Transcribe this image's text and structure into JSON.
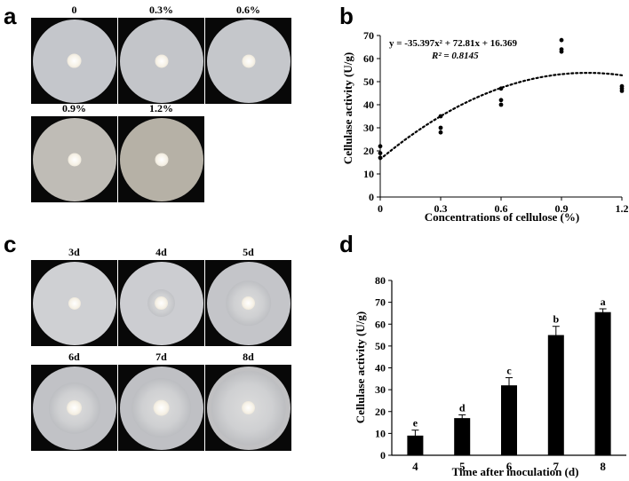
{
  "panels": {
    "a": "a",
    "b": "b",
    "c": "c",
    "d": "d"
  },
  "plates_a": [
    {
      "label": "0",
      "colony": 0.18,
      "fringe": 0.0,
      "tone": "#c4c6cb"
    },
    {
      "label": "0.3%",
      "colony": 0.16,
      "fringe": 0.0,
      "tone": "#c3c5c9"
    },
    {
      "label": "0.6%",
      "colony": 0.16,
      "fringe": 0.0,
      "tone": "#c5c7cb"
    },
    {
      "label": "0.9%",
      "colony": 0.16,
      "fringe": 0.0,
      "tone": "#bfbcb6"
    },
    {
      "label": "1.2%",
      "colony": 0.16,
      "fringe": 0.0,
      "tone": "#b6b1a6"
    }
  ],
  "plates_c": [
    {
      "label": "3d",
      "colony": 0.15,
      "fringe": 0.0,
      "tone": "#cfd0d3"
    },
    {
      "label": "4d",
      "colony": 0.17,
      "fringe": 0.34,
      "tone": "#cccdd1"
    },
    {
      "label": "5d",
      "colony": 0.17,
      "fringe": 0.55,
      "tone": "#c4c5c9"
    },
    {
      "label": "6d",
      "colony": 0.19,
      "fringe": 0.62,
      "tone": "#c1c2c6"
    },
    {
      "label": "7d",
      "colony": 0.2,
      "fringe": 0.72,
      "tone": "#bfc0c4"
    },
    {
      "label": "8d",
      "colony": 0.17,
      "fringe": 0.9,
      "tone": "#c0c0c2"
    }
  ],
  "chart_data": [
    {
      "panel": "b",
      "type": "scatter",
      "title": "",
      "xlabel": "Concentrations of cellulose (%)",
      "ylabel": "Cellulase activity (U/g)",
      "xlim": [
        0,
        1.2
      ],
      "ylim": [
        0,
        70
      ],
      "xticks": [
        "0",
        "0.3",
        "0.6",
        "0.9",
        "1.2"
      ],
      "xtick_values": [
        0,
        0.3,
        0.6,
        0.9,
        1.2
      ],
      "yticks": [
        "0",
        "10",
        "20",
        "30",
        "40",
        "50",
        "60",
        "70"
      ],
      "ytick_values": [
        0,
        10,
        20,
        30,
        40,
        50,
        60,
        70
      ],
      "points": [
        {
          "x": 0,
          "y": 22
        },
        {
          "x": 0,
          "y": 19
        },
        {
          "x": 0,
          "y": 17
        },
        {
          "x": 0.3,
          "y": 35
        },
        {
          "x": 0.3,
          "y": 30
        },
        {
          "x": 0.3,
          "y": 28
        },
        {
          "x": 0.6,
          "y": 47
        },
        {
          "x": 0.6,
          "y": 42
        },
        {
          "x": 0.6,
          "y": 40
        },
        {
          "x": 0.9,
          "y": 68
        },
        {
          "x": 0.9,
          "y": 64
        },
        {
          "x": 0.9,
          "y": 63
        },
        {
          "x": 1.2,
          "y": 48
        },
        {
          "x": 1.2,
          "y": 47
        },
        {
          "x": 1.2,
          "y": 46
        }
      ],
      "trendline": {
        "type": "polynomial",
        "a": -35.397,
        "b": 72.81,
        "c": 16.369
      },
      "equation_text": "y = -35.397x² + 72.81x + 16.369",
      "r2_text": "R² = 0.8145"
    },
    {
      "panel": "d",
      "type": "bar",
      "title": "",
      "xlabel": "Time after inoculation (d)",
      "ylabel": "Cellulase activity (U/g)",
      "categories": [
        "4",
        "5",
        "6",
        "7",
        "8"
      ],
      "values": [
        9,
        17,
        32,
        55,
        65.5
      ],
      "errors": [
        2.5,
        1.5,
        3.5,
        4,
        1.5
      ],
      "letters": [
        "e",
        "d",
        "c",
        "b",
        "a"
      ],
      "ylim": [
        0,
        80
      ],
      "yticks": [
        "0",
        "10",
        "20",
        "30",
        "40",
        "50",
        "60",
        "70",
        "80"
      ],
      "ytick_values": [
        0,
        10,
        20,
        30,
        40,
        50,
        60,
        70,
        80
      ],
      "bar_color": "#000000"
    }
  ]
}
